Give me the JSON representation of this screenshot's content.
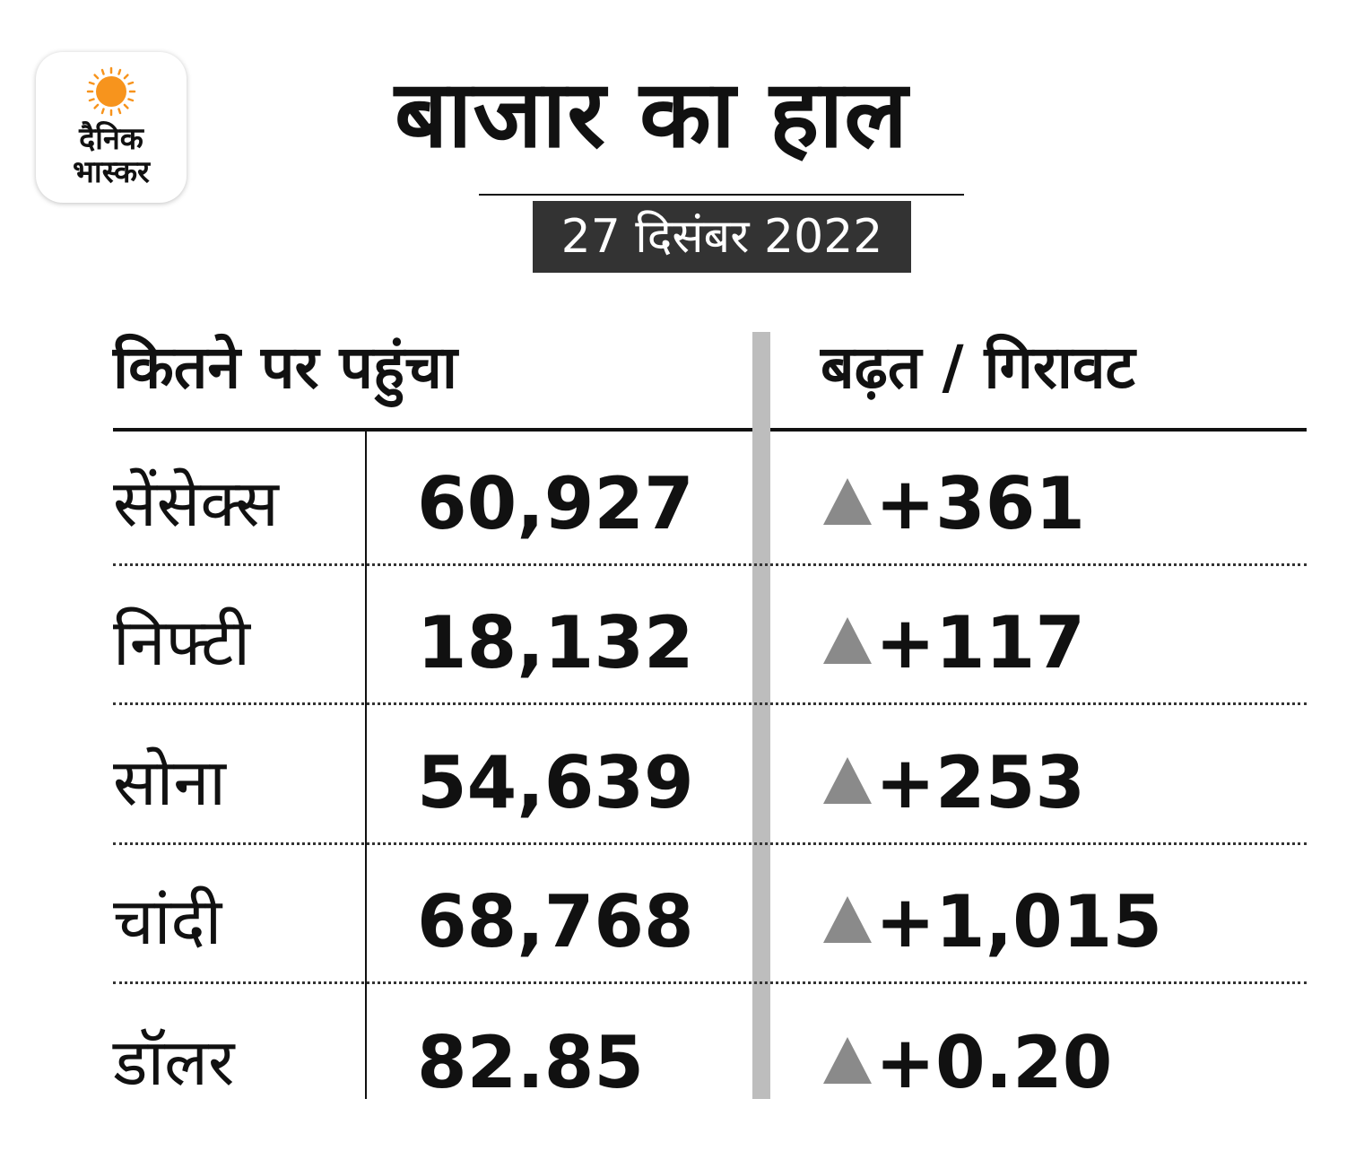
{
  "logo": {
    "line1": "दैनिक",
    "line2": "भास्कर",
    "sun_color": "#f7941d",
    "text_color": "#111111"
  },
  "title": "बाजार का हाल",
  "date": "27 दिसंबर 2022",
  "headers": {
    "reached": "कितने पर पहुंचा",
    "change": "बढ़त / गिरावट"
  },
  "rows": [
    {
      "name": "सेंसेक्स",
      "value": "60,927",
      "change": "+361",
      "direction": "up"
    },
    {
      "name": "निफ्टी",
      "value": "18,132",
      "change": "+117",
      "direction": "up"
    },
    {
      "name": "सोना",
      "value": "54,639",
      "change": "+253",
      "direction": "up"
    },
    {
      "name": "चांदी",
      "value": "68,768",
      "change": "+1,015",
      "direction": "up"
    },
    {
      "name": "डॉलर",
      "value": "82.85",
      "change": "+0.20",
      "direction": "up"
    }
  ],
  "colors": {
    "date_box": "#333333",
    "arrow_up": "#8a8a8a",
    "divider": "#bdbdbd"
  },
  "icons": {
    "trend": "triangle-up-icon"
  }
}
